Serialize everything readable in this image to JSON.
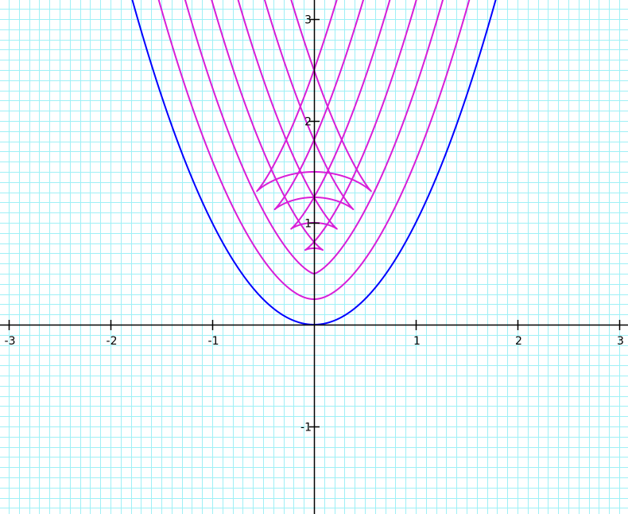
{
  "chart_data": {
    "type": "line",
    "title": "",
    "xlabel": "",
    "ylabel": "",
    "xlim": [
      -3.08,
      3.08
    ],
    "ylim": [
      -1.85,
      3.2
    ],
    "grid": true,
    "grid_step": 0.1,
    "major_step": 1,
    "x_ticks": [
      -3,
      -2,
      -1,
      1,
      2,
      3
    ],
    "x_tick_labels": [
      "-3",
      "-2",
      "-1",
      "1",
      "2",
      "3"
    ],
    "y_ticks": [
      -1,
      1,
      2,
      3
    ],
    "y_tick_labels": [
      "-1",
      "1",
      "2",
      "3"
    ],
    "colors": {
      "grid": "#9ff0f6",
      "axes": "#000000",
      "base": "#0000ff",
      "offset": "#d81ed8"
    },
    "series": [
      {
        "kind": "base",
        "values": {
          "equation": "y = x^2",
          "domain": [
            -2,
            2
          ]
        }
      },
      {
        "kind": "parallel",
        "distance": 0.25
      },
      {
        "kind": "parallel",
        "distance": 0.5
      },
      {
        "kind": "parallel",
        "distance": 0.75
      },
      {
        "kind": "parallel",
        "distance": 1.0
      },
      {
        "kind": "parallel",
        "distance": 1.25
      },
      {
        "kind": "parallel",
        "distance": 1.5
      }
    ]
  }
}
